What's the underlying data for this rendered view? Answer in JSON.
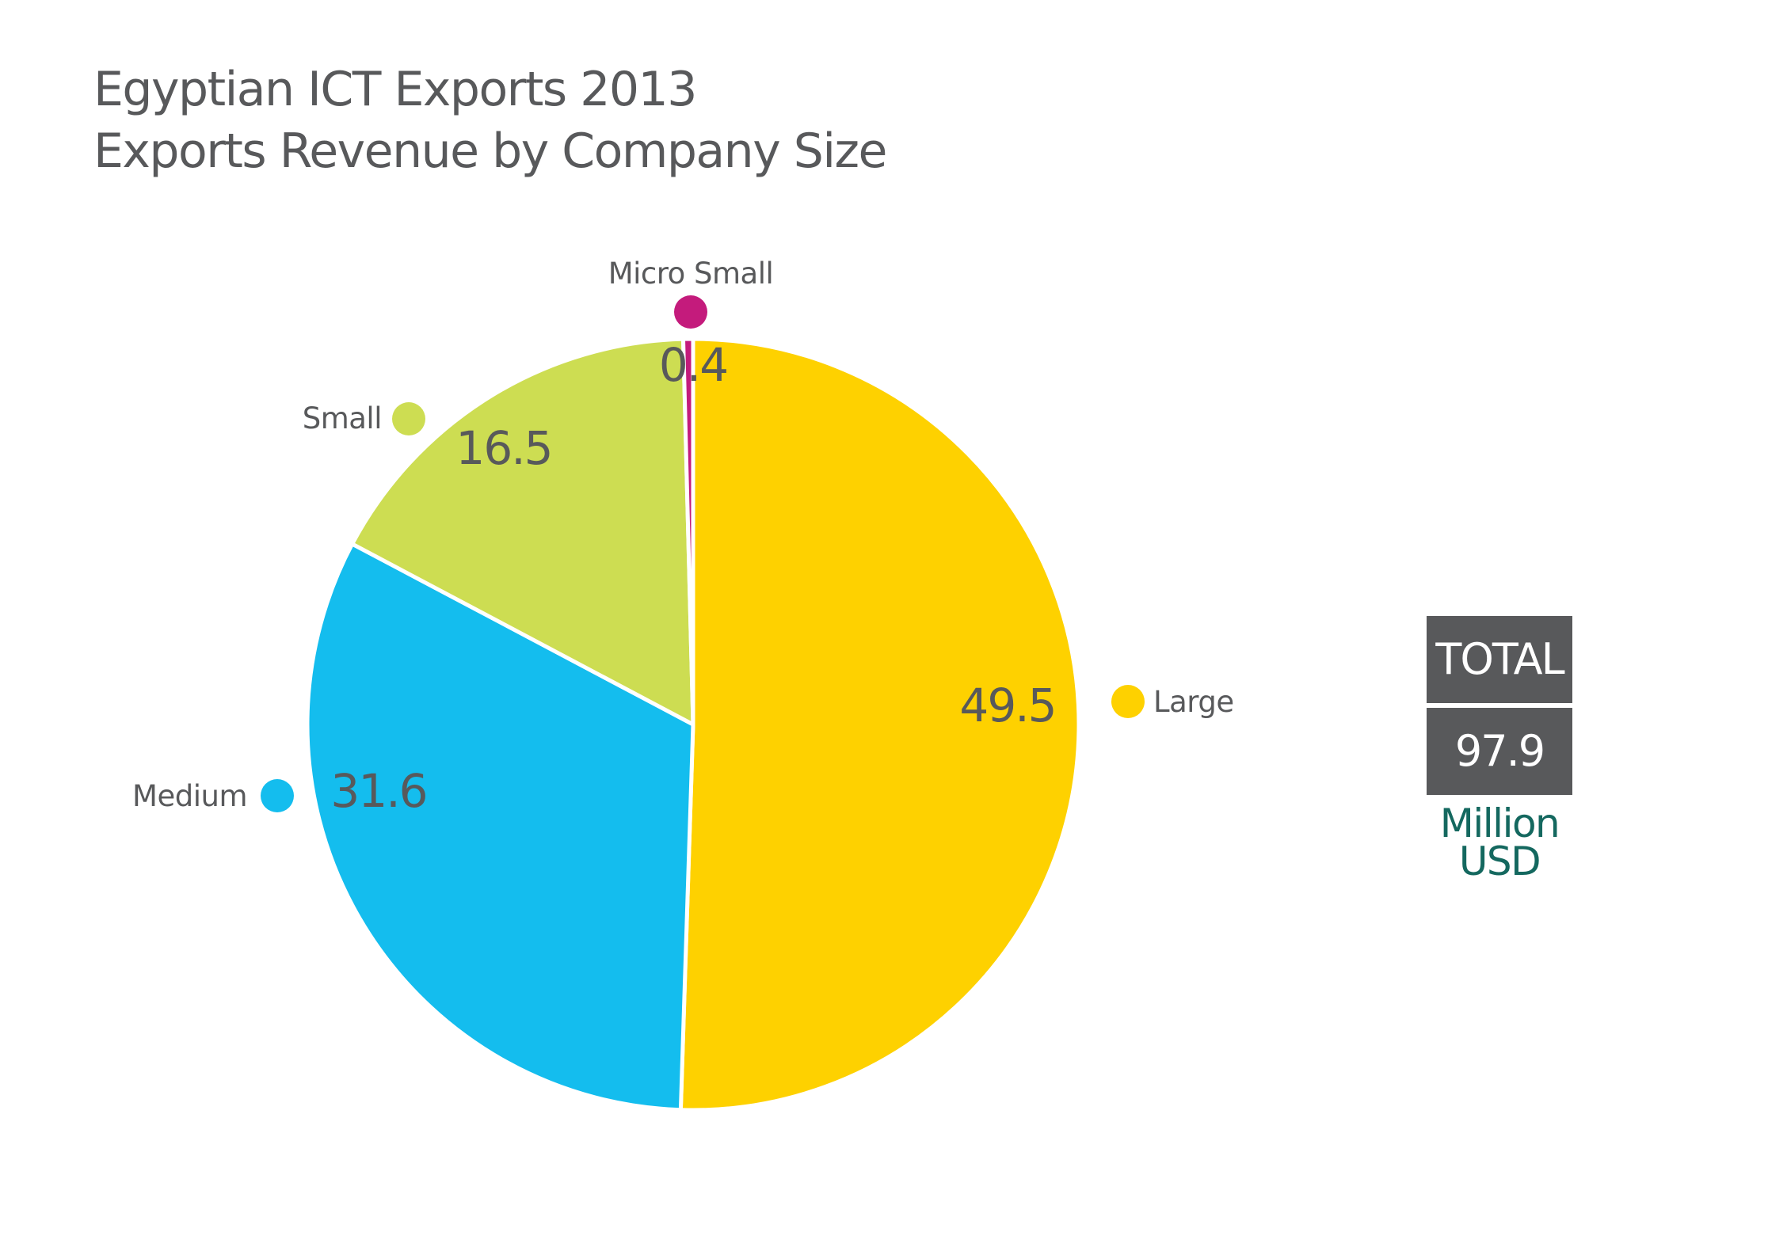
{
  "title_lines": [
    "Egyptian ICT Exports 2013",
    "Exports Revenue by Company Size"
  ],
  "total": {
    "label": "TOTAL",
    "value": "97.9",
    "unit_line1": "Million",
    "unit_line2": "USD"
  },
  "chart_data": {
    "type": "pie",
    "title": "Egyptian ICT Exports 2013 Exports Revenue by Company Size",
    "slices": [
      {
        "name": "Large",
        "value": 49.5,
        "label": "49.5",
        "color": "#fed100"
      },
      {
        "name": "Medium",
        "value": 31.6,
        "label": "31.6",
        "color": "#14bdee"
      },
      {
        "name": "Small",
        "value": 16.5,
        "label": "16.5",
        "color": "#cddd52"
      },
      {
        "name": "Micro Small",
        "value": 0.4,
        "label": "0.4",
        "color": "#c41b7c"
      }
    ],
    "start_angle": "12 o'clock",
    "direction": "clockwise",
    "total": 97.9,
    "unit": "Million USD"
  }
}
